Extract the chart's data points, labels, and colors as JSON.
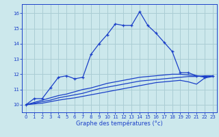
{
  "xlabel": "Graphe des températures (°c)",
  "bg_color": "#cce8ec",
  "grid_color": "#aacdd4",
  "line_color": "#1a3fc8",
  "xlim": [
    -0.5,
    23.5
  ],
  "ylim": [
    9.5,
    16.6
  ],
  "xticks": [
    0,
    1,
    2,
    3,
    4,
    5,
    6,
    7,
    8,
    9,
    10,
    11,
    12,
    13,
    14,
    15,
    16,
    17,
    18,
    19,
    20,
    21,
    22,
    23
  ],
  "yticks": [
    10,
    11,
    12,
    13,
    14,
    15,
    16
  ],
  "line1_x": [
    0,
    1,
    2,
    3,
    4,
    5,
    6,
    7,
    8,
    9,
    10,
    11,
    12,
    13,
    14,
    15,
    16,
    17,
    18,
    19,
    20,
    21,
    22,
    23
  ],
  "line1_y": [
    10.0,
    10.4,
    10.4,
    11.1,
    11.8,
    11.9,
    11.7,
    11.8,
    13.3,
    14.0,
    14.6,
    15.3,
    15.2,
    15.2,
    16.1,
    15.2,
    14.7,
    14.1,
    13.5,
    12.1,
    12.1,
    11.9,
    11.8,
    11.9
  ],
  "line2_x": [
    0,
    2,
    3,
    4,
    5,
    6,
    7,
    8,
    9,
    10,
    11,
    12,
    13,
    14,
    15,
    16,
    17,
    18,
    19,
    20,
    21,
    22,
    23
  ],
  "line2_y": [
    10.0,
    10.3,
    10.45,
    10.6,
    10.7,
    10.85,
    11.0,
    11.1,
    11.25,
    11.4,
    11.5,
    11.6,
    11.7,
    11.8,
    11.85,
    11.9,
    11.95,
    12.0,
    12.0,
    11.95,
    11.9,
    11.85,
    11.9
  ],
  "line3_x": [
    0,
    1,
    2,
    3,
    4,
    5,
    6,
    7,
    8,
    9,
    10,
    11,
    12,
    13,
    14,
    15,
    16,
    17,
    18,
    19,
    20,
    21,
    22,
    23
  ],
  "line3_y": [
    10.0,
    10.1,
    10.2,
    10.3,
    10.45,
    10.55,
    10.65,
    10.75,
    10.9,
    11.05,
    11.15,
    11.25,
    11.35,
    11.45,
    11.55,
    11.6,
    11.65,
    11.7,
    11.75,
    11.8,
    11.85,
    11.85,
    11.9,
    11.9
  ],
  "line4_x": [
    0,
    1,
    2,
    3,
    4,
    5,
    6,
    7,
    8,
    9,
    10,
    11,
    12,
    13,
    14,
    15,
    16,
    17,
    18,
    19,
    20,
    21,
    22,
    23
  ],
  "line4_y": [
    10.0,
    10.05,
    10.1,
    10.2,
    10.3,
    10.38,
    10.45,
    10.55,
    10.65,
    10.75,
    10.85,
    10.95,
    11.05,
    11.15,
    11.25,
    11.35,
    11.45,
    11.5,
    11.55,
    11.6,
    11.5,
    11.35,
    11.75,
    11.85
  ],
  "xlabel_fontsize": 6,
  "tick_fontsize": 5
}
